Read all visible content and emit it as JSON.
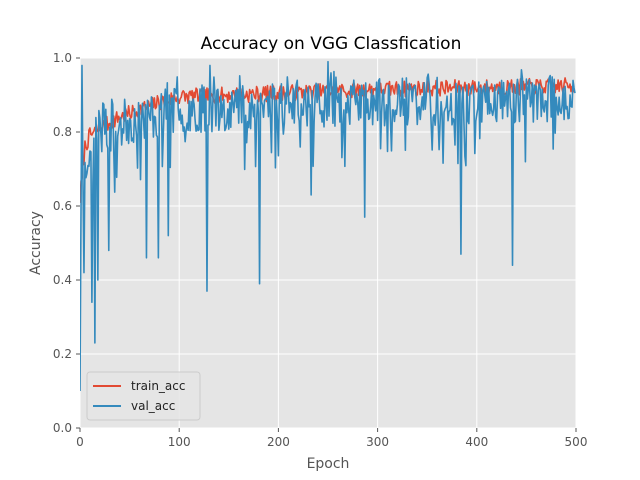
{
  "chart_data": {
    "type": "line",
    "title": "Accuracy on VGG Classfication",
    "xlabel": "Epoch",
    "ylabel": "Accuracy",
    "xlim": [
      0,
      500
    ],
    "ylim": [
      0.0,
      1.0
    ],
    "xticks": [
      0,
      100,
      200,
      300,
      400,
      500
    ],
    "yticks": [
      0.0,
      0.2,
      0.4,
      0.6,
      0.8,
      1.0
    ],
    "xtick_labels": [
      "0",
      "100",
      "200",
      "300",
      "400",
      "500"
    ],
    "ytick_labels": [
      "0.0",
      "0.2",
      "0.4",
      "0.6",
      "0.8",
      "1.0"
    ],
    "grid": true,
    "legend_position": "lower-left",
    "background": "#e5e5e5",
    "series": [
      {
        "name": "train_acc",
        "color": "#e24a33",
        "generator": {
          "count": 500,
          "points": [
            [
              0,
              0.62
            ],
            [
              5,
              0.76
            ],
            [
              10,
              0.79
            ],
            [
              20,
              0.81
            ],
            [
              40,
              0.84
            ],
            [
              60,
              0.86
            ],
            [
              80,
              0.88
            ],
            [
              100,
              0.895
            ],
            [
              150,
              0.9
            ],
            [
              200,
              0.905
            ],
            [
              250,
              0.91
            ],
            [
              300,
              0.915
            ],
            [
              350,
              0.918
            ],
            [
              400,
              0.92
            ],
            [
              450,
              0.922
            ],
            [
              499,
              0.925
            ]
          ],
          "noise": 0.022,
          "seed": 7
        }
      },
      {
        "name": "val_acc",
        "color": "#348abd",
        "generator": {
          "count": 500,
          "base": [
            [
              0,
              0.6
            ],
            [
              10,
              0.78
            ],
            [
              50,
              0.83
            ],
            [
              100,
              0.86
            ],
            [
              200,
              0.875
            ],
            [
              300,
              0.88
            ],
            [
              400,
              0.885
            ],
            [
              499,
              0.89
            ]
          ],
          "noise": 0.065,
          "seed": 23,
          "points": [
            [
              0,
              0.1
            ],
            [
              2,
              0.98
            ],
            [
              4,
              0.42
            ],
            [
              12,
              0.34
            ],
            [
              15,
              0.23
            ],
            [
              18,
              0.4
            ],
            [
              29,
              0.48
            ],
            [
              67,
              0.46
            ],
            [
              79,
              0.46
            ],
            [
              89,
              0.52
            ],
            [
              128,
              0.37
            ],
            [
              131,
              0.98
            ],
            [
              181,
              0.39
            ],
            [
              233,
              0.63
            ],
            [
              250,
              0.99
            ],
            [
              287,
              0.57
            ],
            [
              384,
              0.47
            ],
            [
              436,
              0.44
            ]
          ]
        }
      }
    ]
  }
}
